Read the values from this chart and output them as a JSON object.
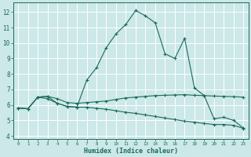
{
  "title": "",
  "xlabel": "Humidex (Indice chaleur)",
  "background_color": "#cce8e8",
  "grid_color": "#ffffff",
  "line_color": "#1a6b5a",
  "xlim": [
    -0.5,
    23.5
  ],
  "ylim": [
    3.8,
    12.6
  ],
  "xticks": [
    0,
    1,
    2,
    3,
    4,
    5,
    6,
    7,
    8,
    9,
    10,
    11,
    12,
    13,
    14,
    15,
    16,
    17,
    18,
    19,
    20,
    21,
    22,
    23
  ],
  "yticks": [
    4,
    5,
    6,
    7,
    8,
    9,
    10,
    11,
    12
  ],
  "curve1_x": [
    0,
    1,
    2,
    3,
    4,
    5,
    6,
    7,
    8,
    9,
    10,
    11,
    12,
    13,
    14,
    15,
    16,
    17,
    18,
    19,
    20,
    21,
    22,
    23
  ],
  "curve1_y": [
    5.8,
    5.75,
    6.5,
    6.55,
    6.1,
    5.9,
    5.85,
    7.6,
    8.4,
    9.7,
    10.6,
    11.2,
    12.1,
    11.75,
    11.3,
    9.3,
    9.0,
    10.3,
    7.1,
    6.6,
    5.1,
    5.2,
    5.0,
    4.5
  ],
  "curve2_x": [
    0,
    1,
    2,
    3,
    4,
    5,
    6,
    7,
    8,
    9,
    10,
    11,
    12,
    13,
    14,
    15,
    16,
    17,
    18,
    19,
    20,
    21,
    22,
    23
  ],
  "curve2_y": [
    5.8,
    5.75,
    6.5,
    6.55,
    6.4,
    6.15,
    6.1,
    6.15,
    6.2,
    6.25,
    6.35,
    6.45,
    6.5,
    6.55,
    6.6,
    6.62,
    6.64,
    6.66,
    6.62,
    6.6,
    6.57,
    6.55,
    6.53,
    6.5
  ],
  "curve3_x": [
    0,
    1,
    2,
    3,
    4,
    5,
    6,
    7,
    8,
    9,
    10,
    11,
    12,
    13,
    14,
    15,
    16,
    17,
    18,
    19,
    20,
    21,
    22,
    23
  ],
  "curve3_y": [
    5.8,
    5.75,
    6.5,
    6.4,
    6.1,
    5.9,
    5.85,
    5.85,
    5.78,
    5.72,
    5.62,
    5.52,
    5.45,
    5.35,
    5.25,
    5.15,
    5.05,
    4.95,
    4.88,
    4.8,
    4.73,
    4.73,
    4.68,
    4.48
  ]
}
